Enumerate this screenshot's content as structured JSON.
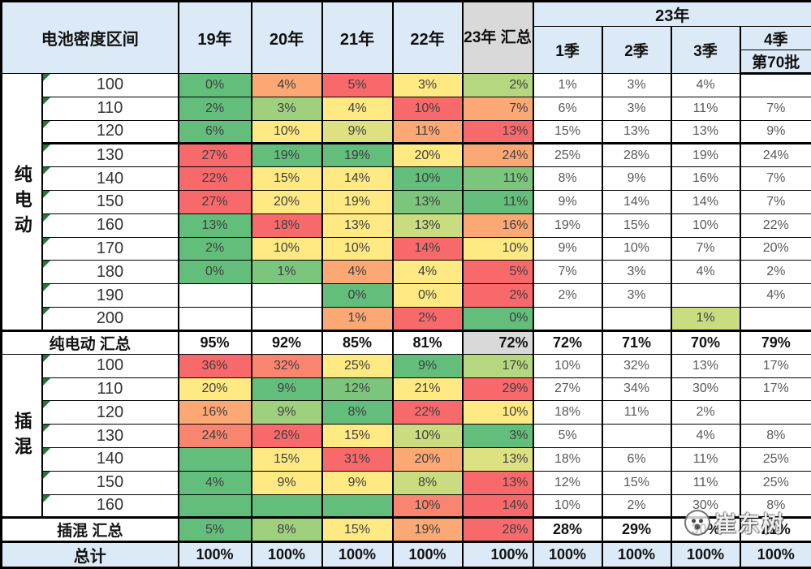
{
  "chart_data": {
    "type": "table",
    "header": {
      "corner": "电池密度区间",
      "year_cols": [
        "19年",
        "20年",
        "21年",
        "22年"
      ],
      "sum_col": "23年 汇总",
      "group_23": "23年",
      "quarter_cols": [
        "1季",
        "2季",
        "3季"
      ],
      "q4": "4季",
      "q4_sub": "第70批"
    },
    "palette": {
      "G": "#63BE7B",
      "G2": "#7CC57D",
      "G3": "#9ED07E",
      "G4": "#B5D77F",
      "YG": "#C9DC80",
      "YG2": "#DDE182",
      "Y": "#FFE983",
      "O": "#FBA875",
      "O2": "#F98570",
      "R": "#F8696B",
      "GRAY": "#D9D9D9"
    },
    "colors": {
      "header_bg": "#DCE9F6",
      "total_bg": "#DCE9F6",
      "border": "#000000"
    },
    "sections": [
      {
        "label": "纯电动",
        "rows": [
          {
            "density": "100",
            "cells": [
              [
                "0%",
                "G"
              ],
              [
                "4%",
                "O"
              ],
              [
                "5%",
                "R"
              ],
              [
                "3%",
                "Y"
              ],
              [
                "2%",
                "G4"
              ],
              "1%",
              "3%",
              "4%",
              ""
            ]
          },
          {
            "density": "110",
            "cells": [
              [
                "2%",
                "G"
              ],
              [
                "3%",
                "G3"
              ],
              [
                "4%",
                "Y"
              ],
              [
                "10%",
                "R"
              ],
              [
                "7%",
                "O"
              ],
              "6%",
              "3%",
              "11%",
              "7%"
            ]
          },
          {
            "density": "120",
            "cells": [
              [
                "6%",
                "G"
              ],
              [
                "10%",
                "Y"
              ],
              [
                "9%",
                "YG2"
              ],
              [
                "11%",
                "O"
              ],
              [
                "13%",
                "R"
              ],
              "15%",
              "13%",
              "13%",
              "9%"
            ]
          },
          {
            "density": "130",
            "cells": [
              [
                "27%",
                "R"
              ],
              [
                "19%",
                "G"
              ],
              [
                "19%",
                "G"
              ],
              [
                "20%",
                "Y"
              ],
              [
                "24%",
                "O"
              ],
              "25%",
              "28%",
              "19%",
              "24%"
            ]
          },
          {
            "density": "140",
            "cells": [
              [
                "22%",
                "R"
              ],
              [
                "15%",
                "Y"
              ],
              [
                "14%",
                "Y"
              ],
              [
                "10%",
                "G"
              ],
              [
                "11%",
                "G2"
              ],
              "8%",
              "9%",
              "16%",
              "7%"
            ]
          },
          {
            "density": "150",
            "cells": [
              [
                "27%",
                "R"
              ],
              [
                "20%",
                "Y"
              ],
              [
                "19%",
                "Y"
              ],
              [
                "13%",
                "G2"
              ],
              [
                "11%",
                "G"
              ],
              "9%",
              "14%",
              "14%",
              "7%"
            ]
          },
          {
            "density": "160",
            "cells": [
              [
                "13%",
                "G"
              ],
              [
                "18%",
                "R"
              ],
              [
                "13%",
                "Y"
              ],
              [
                "13%",
                "YG"
              ],
              [
                "16%",
                "O"
              ],
              "19%",
              "15%",
              "10%",
              "22%"
            ]
          },
          {
            "density": "170",
            "cells": [
              [
                "2%",
                "G"
              ],
              [
                "10%",
                "Y"
              ],
              [
                "10%",
                "Y"
              ],
              [
                "14%",
                "R"
              ],
              [
                "10%",
                "Y"
              ],
              "9%",
              "10%",
              "7%",
              "20%"
            ]
          },
          {
            "density": "180",
            "cells": [
              [
                "0%",
                "G"
              ],
              [
                "1%",
                "G2"
              ],
              [
                "4%",
                "O"
              ],
              [
                "4%",
                "Y"
              ],
              [
                "5%",
                "R"
              ],
              "7%",
              "3%",
              "4%",
              "2%"
            ]
          },
          {
            "density": "190",
            "cells": [
              "",
              "",
              [
                "0%",
                "G"
              ],
              [
                "0%",
                "Y"
              ],
              [
                "2%",
                "R"
              ],
              "2%",
              "3%",
              "",
              "4%"
            ]
          },
          {
            "density": "200",
            "cells": [
              "",
              "",
              [
                "1%",
                "O"
              ],
              [
                "2%",
                "R"
              ],
              [
                "0%",
                "G"
              ],
              "",
              "",
              [
                "1%",
                "YG"
              ],
              ""
            ]
          }
        ],
        "sum": {
          "label": "纯电动 汇总",
          "cells": [
            "95%",
            "92%",
            "85%",
            "81%",
            [
              "72%",
              "GRAY"
            ],
            "72%",
            "71%",
            "70%",
            "79%"
          ]
        }
      },
      {
        "label": "插混",
        "rows": [
          {
            "density": "100",
            "cells": [
              [
                "36%",
                "R"
              ],
              [
                "32%",
                "O2"
              ],
              [
                "25%",
                "Y"
              ],
              [
                "9%",
                "G"
              ],
              [
                "17%",
                "G4"
              ],
              "10%",
              "32%",
              "13%",
              "17%"
            ]
          },
          {
            "density": "110",
            "cells": [
              [
                "20%",
                "Y"
              ],
              [
                "9%",
                "G"
              ],
              [
                "12%",
                "G2"
              ],
              [
                "21%",
                "Y"
              ],
              [
                "29%",
                "R"
              ],
              "27%",
              "34%",
              "30%",
              "17%"
            ]
          },
          {
            "density": "120",
            "cells": [
              [
                "16%",
                "O"
              ],
              [
                "9%",
                "G3"
              ],
              [
                "8%",
                "G"
              ],
              [
                "22%",
                "R"
              ],
              [
                "10%",
                "Y"
              ],
              "18%",
              "11%",
              "2%",
              ""
            ]
          },
          {
            "density": "130",
            "cells": [
              [
                "24%",
                "O2"
              ],
              [
                "26%",
                "R"
              ],
              [
                "15%",
                "Y"
              ],
              [
                "10%",
                "YG"
              ],
              [
                "3%",
                "G"
              ],
              "5%",
              "",
              "4%",
              "8%"
            ]
          },
          {
            "density": "140",
            "cells": [
              [
                "",
                "G"
              ],
              [
                "15%",
                "Y"
              ],
              [
                "31%",
                "R"
              ],
              [
                "20%",
                "O"
              ],
              [
                "13%",
                "YG2"
              ],
              "18%",
              "6%",
              "11%",
              "25%"
            ]
          },
          {
            "density": "150",
            "cells": [
              [
                "4%",
                "G"
              ],
              [
                "9%",
                "Y"
              ],
              [
                "9%",
                "Y"
              ],
              [
                "8%",
                "YG"
              ],
              [
                "13%",
                "R"
              ],
              "12%",
              "15%",
              "11%",
              "25%"
            ]
          },
          {
            "density": "160",
            "cells": [
              [
                "",
                "G"
              ],
              [
                "",
                "G"
              ],
              [
                "",
                "G"
              ],
              [
                "10%",
                "O2"
              ],
              [
                "14%",
                "R"
              ],
              "10%",
              "2%",
              "30%",
              "8%"
            ]
          }
        ],
        "sum": {
          "label": "插混 汇总",
          "cells": [
            [
              "5%",
              "G"
            ],
            [
              "8%",
              "G3"
            ],
            [
              "15%",
              "Y"
            ],
            [
              "19%",
              "O"
            ],
            [
              "28%",
              "R"
            ],
            "28%",
            "29%",
            "30%",
            "21%"
          ]
        }
      }
    ],
    "total_row": {
      "label": "总计",
      "cells": [
        "100%",
        "100%",
        "100%",
        "100%",
        "100%",
        "100%",
        "100%",
        "100%",
        "100%"
      ]
    }
  },
  "watermark": {
    "text": "崔东树"
  }
}
